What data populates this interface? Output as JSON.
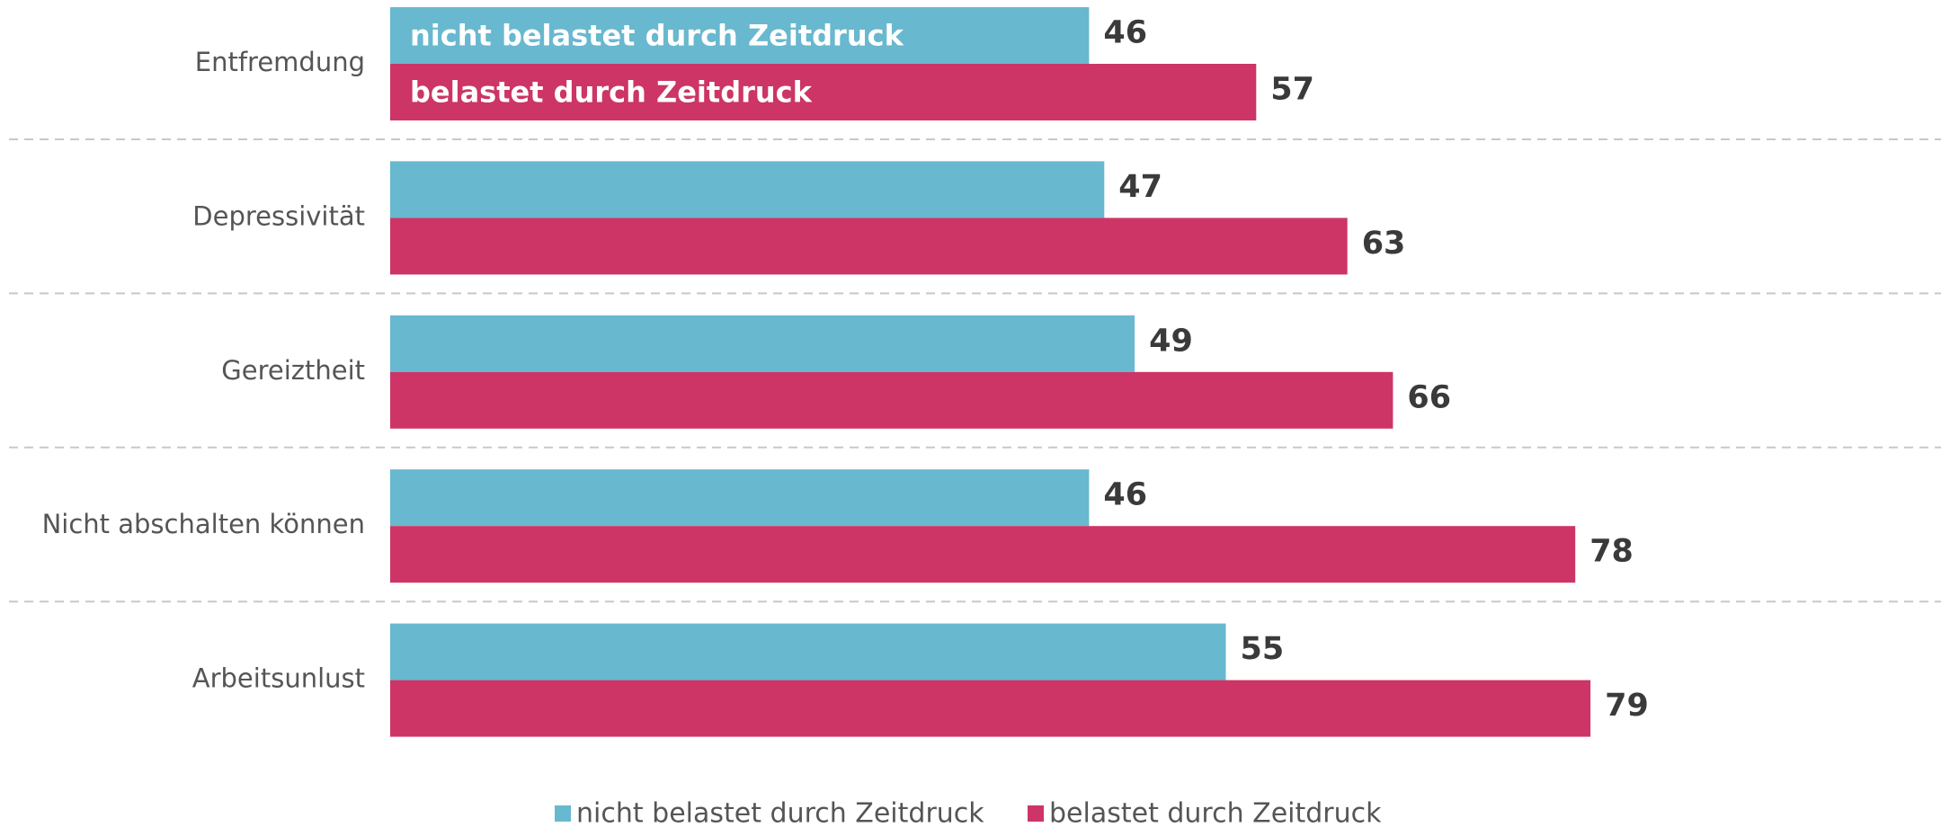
{
  "chart_data": {
    "type": "hbar",
    "categories": [
      "Entfremdung",
      "Depressivität",
      "Gereiztheit",
      "Nicht abschalten können",
      "Arbeitsunlust"
    ],
    "series": [
      {
        "name": "nicht belastet durch Zeitdruck",
        "color": "#68b8cf",
        "values": [
          46,
          47,
          49,
          46,
          55
        ]
      },
      {
        "name": "belastet durch Zeitdruck",
        "color": "#cc3566",
        "values": [
          57,
          63,
          66,
          78,
          79
        ]
      }
    ],
    "legend": "bottom"
  }
}
